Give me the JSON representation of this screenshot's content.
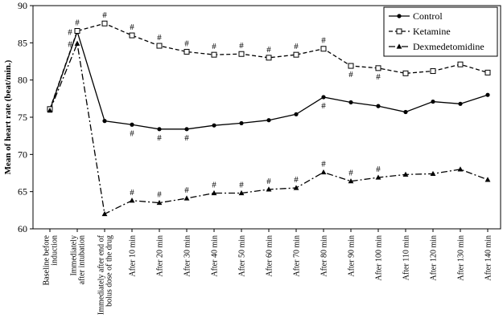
{
  "chart_data": {
    "type": "line",
    "title": "",
    "xlabel": "",
    "ylabel": "Mean of heart rate (beat/min.)",
    "ylim": [
      60,
      90
    ],
    "yticks": [
      60,
      65,
      70,
      75,
      80,
      85,
      90
    ],
    "grid": false,
    "legend_position": "top-right",
    "categories": [
      [
        "Baseline before",
        "induction"
      ],
      [
        "Immediately",
        "after intubation"
      ],
      [
        "Immediately after end of",
        "bolus dose of the drug"
      ],
      [
        "After 10 min"
      ],
      [
        "After 20 min"
      ],
      [
        "After 30 min"
      ],
      [
        "After 40 min"
      ],
      [
        "After 50 min"
      ],
      [
        "After 60 min"
      ],
      [
        "After 70 min"
      ],
      [
        "After 80 min"
      ],
      [
        "After 90 min"
      ],
      [
        "After 100 min"
      ],
      [
        "After 110 min"
      ],
      [
        "After 120 min"
      ],
      [
        "After 130 min"
      ],
      [
        "After 140 min"
      ]
    ],
    "series": [
      {
        "name": "Control",
        "style": "solid",
        "marker": "circle",
        "color": "#000000",
        "values": [
          76.0,
          86.5,
          74.5,
          74.0,
          73.4,
          73.4,
          73.9,
          74.2,
          74.6,
          75.4,
          77.7,
          77.0,
          76.5,
          75.7,
          77.1,
          76.8,
          78.0
        ]
      },
      {
        "name": "Ketamine",
        "style": "dashed",
        "marker": "square",
        "color": "#000000",
        "values": [
          76.1,
          86.6,
          87.6,
          86.0,
          84.6,
          83.8,
          83.4,
          83.5,
          83.0,
          83.4,
          84.2,
          81.9,
          81.6,
          80.9,
          81.2,
          82.1,
          81.0
        ]
      },
      {
        "name": "Dexmedetomidine",
        "style": "dash-dot",
        "marker": "triangle",
        "color": "#000000",
        "values": [
          75.9,
          84.9,
          62.0,
          63.8,
          63.5,
          64.1,
          64.8,
          64.8,
          65.3,
          65.5,
          67.6,
          66.4,
          66.9,
          67.3,
          67.4,
          68.0,
          66.6
        ]
      }
    ],
    "significance_marker": "#",
    "annotations": [
      {
        "series": "Control",
        "category_index": 1,
        "position": "left"
      },
      {
        "series": "Control",
        "category_index": 3,
        "position": "below"
      },
      {
        "series": "Control",
        "category_index": 4,
        "position": "below"
      },
      {
        "series": "Control",
        "category_index": 5,
        "position": "below"
      },
      {
        "series": "Control",
        "category_index": 10,
        "position": "below"
      },
      {
        "series": "Ketamine",
        "category_index": 1,
        "position": "above"
      },
      {
        "series": "Ketamine",
        "category_index": 2,
        "position": "above"
      },
      {
        "series": "Ketamine",
        "category_index": 3,
        "position": "above"
      },
      {
        "series": "Ketamine",
        "category_index": 4,
        "position": "above"
      },
      {
        "series": "Ketamine",
        "category_index": 5,
        "position": "above"
      },
      {
        "series": "Ketamine",
        "category_index": 6,
        "position": "above"
      },
      {
        "series": "Ketamine",
        "category_index": 7,
        "position": "above"
      },
      {
        "series": "Ketamine",
        "category_index": 8,
        "position": "above"
      },
      {
        "series": "Ketamine",
        "category_index": 9,
        "position": "above"
      },
      {
        "series": "Ketamine",
        "category_index": 10,
        "position": "above"
      },
      {
        "series": "Ketamine",
        "category_index": 11,
        "position": "below"
      },
      {
        "series": "Ketamine",
        "category_index": 12,
        "position": "below"
      },
      {
        "series": "Dexmedetomidine",
        "category_index": 1,
        "position": "left"
      },
      {
        "series": "Dexmedetomidine",
        "category_index": 3,
        "position": "above"
      },
      {
        "series": "Dexmedetomidine",
        "category_index": 4,
        "position": "above"
      },
      {
        "series": "Dexmedetomidine",
        "category_index": 5,
        "position": "above"
      },
      {
        "series": "Dexmedetomidine",
        "category_index": 6,
        "position": "above"
      },
      {
        "series": "Dexmedetomidine",
        "category_index": 7,
        "position": "above"
      },
      {
        "series": "Dexmedetomidine",
        "category_index": 8,
        "position": "above"
      },
      {
        "series": "Dexmedetomidine",
        "category_index": 9,
        "position": "above"
      },
      {
        "series": "Dexmedetomidine",
        "category_index": 10,
        "position": "above"
      },
      {
        "series": "Dexmedetomidine",
        "category_index": 11,
        "position": "above"
      },
      {
        "series": "Dexmedetomidine",
        "category_index": 12,
        "position": "above"
      }
    ]
  }
}
